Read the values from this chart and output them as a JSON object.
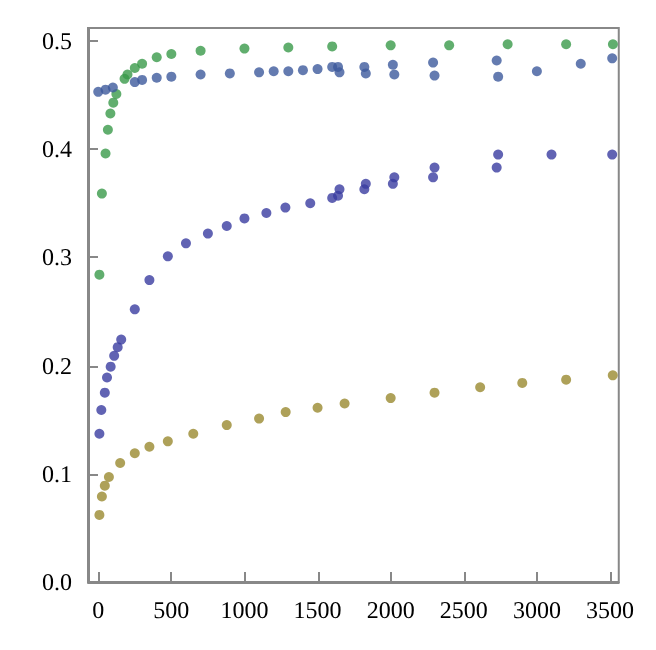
{
  "chart_data": {
    "type": "scatter",
    "marker": "circle",
    "grid": false,
    "xlim": [
      -70,
      3560
    ],
    "ylim": [
      0,
      0.512
    ],
    "xticks": [
      0,
      500,
      1000,
      1500,
      2000,
      2500,
      3000,
      3500
    ],
    "yticks": [
      {
        "value": 0,
        "label": "0.0"
      },
      0.1,
      0.2,
      0.3,
      0.4,
      0.5
    ],
    "series": [
      {
        "color": "#3a9a4a",
        "x": [
          8,
          25,
          50,
          66,
          83,
          103,
          124,
          180,
          200,
          250,
          300,
          400,
          500,
          700,
          1000,
          1300,
          1600,
          2000,
          2400,
          2800,
          3200,
          3520
        ],
        "values": [
          0.284,
          0.359,
          0.396,
          0.418,
          0.433,
          0.443,
          0.451,
          0.465,
          0.469,
          0.475,
          0.479,
          0.485,
          0.488,
          0.491,
          0.493,
          0.494,
          0.495,
          0.496,
          0.496,
          0.497,
          0.497,
          0.497
        ]
      },
      {
        "color": "#3d5a9c",
        "x": [
          0,
          50,
          100,
          250,
          300,
          400,
          500,
          700,
          900,
          1100,
          1200,
          1300,
          1400,
          1500,
          1600,
          1640,
          1650,
          1820,
          1830,
          2015,
          2025,
          2290,
          2300,
          2725,
          2735,
          3000,
          3300,
          3515
        ],
        "values": [
          0.453,
          0.455,
          0.457,
          0.462,
          0.464,
          0.466,
          0.467,
          0.469,
          0.47,
          0.471,
          0.472,
          0.472,
          0.473,
          0.474,
          0.476,
          0.476,
          0.471,
          0.476,
          0.47,
          0.478,
          0.469,
          0.48,
          0.468,
          0.482,
          0.467,
          0.472,
          0.479,
          0.484
        ]
      },
      {
        "color": "#3a3ca0",
        "x": [
          8,
          21,
          45,
          60,
          85,
          109,
          133,
          157,
          250,
          350,
          476,
          600,
          750,
          879,
          1000,
          1150,
          1280,
          1450,
          1600,
          1640,
          1650,
          1820,
          1830,
          2015,
          2025,
          2290,
          2300,
          2725,
          2735,
          3100,
          3515
        ],
        "values": [
          0.137,
          0.159,
          0.175,
          0.189,
          0.199,
          0.209,
          0.217,
          0.224,
          0.252,
          0.279,
          0.301,
          0.313,
          0.322,
          0.329,
          0.336,
          0.341,
          0.346,
          0.35,
          0.355,
          0.357,
          0.363,
          0.363,
          0.368,
          0.368,
          0.374,
          0.374,
          0.383,
          0.383,
          0.395,
          0.395,
          0.395
        ]
      },
      {
        "color": "#9a8a30",
        "x": [
          8,
          25,
          45,
          73,
          150,
          250,
          350,
          476,
          650,
          879,
          1100,
          1282,
          1500,
          1685,
          2000,
          2300,
          2612,
          2900,
          3200,
          3519
        ],
        "values": [
          0.062,
          0.079,
          0.089,
          0.097,
          0.11,
          0.119,
          0.125,
          0.13,
          0.137,
          0.145,
          0.151,
          0.157,
          0.161,
          0.165,
          0.17,
          0.175,
          0.18,
          0.184,
          0.187,
          0.191
        ]
      }
    ]
  }
}
